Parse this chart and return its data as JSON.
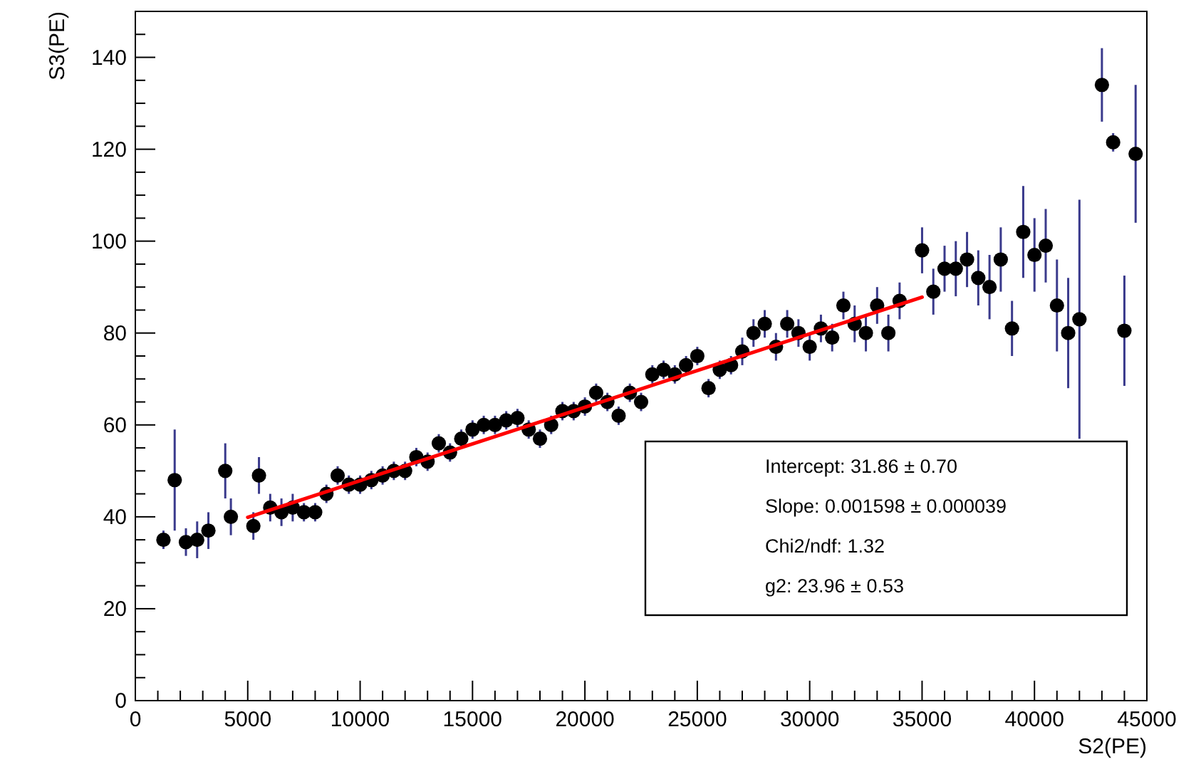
{
  "chart_data": {
    "type": "scatter",
    "xlabel": "S2(PE)",
    "ylabel": "S3(PE)",
    "xlim": [
      0,
      45000
    ],
    "ylim": [
      0,
      150
    ],
    "xticks": [
      0,
      5000,
      10000,
      15000,
      20000,
      25000,
      30000,
      35000,
      40000,
      45000
    ],
    "yticks": [
      0,
      20,
      40,
      60,
      80,
      100,
      120,
      140
    ],
    "grid": false,
    "series": [
      {
        "marker": "circle",
        "color": "#000000",
        "x": [
          1250,
          1750,
          2250,
          2750,
          3250,
          4000,
          4250,
          5250,
          5500,
          6000,
          6500,
          7000,
          7500,
          8000,
          8500,
          9000,
          9500,
          10000,
          10500,
          11000,
          11500,
          12000,
          12500,
          13000,
          13500,
          14000,
          14500,
          15000,
          15500,
          16000,
          16500,
          17000,
          17500,
          18000,
          18500,
          19000,
          19500,
          20000,
          20500,
          21000,
          21500,
          22000,
          22500,
          23000,
          23500,
          24000,
          24500,
          25000,
          25500,
          26000,
          26500,
          27000,
          27500,
          28000,
          28500,
          29000,
          29500,
          30000,
          30500,
          31000,
          31500,
          32000,
          32500,
          33000,
          33500,
          34000,
          35000,
          35500,
          36000,
          36500,
          37000,
          37500,
          38000,
          38500,
          39000,
          39500,
          40000,
          40500,
          41000,
          41500,
          42000,
          43000,
          43500,
          44000,
          44500
        ],
        "values": [
          35,
          48,
          34.5,
          35,
          37,
          50,
          40,
          38,
          49,
          42,
          41,
          42,
          41,
          41,
          45,
          49,
          47,
          47,
          48,
          49,
          50,
          50,
          53,
          52,
          56,
          54,
          57,
          59,
          60,
          60,
          61,
          61.5,
          59,
          57,
          60,
          63,
          63,
          64,
          67,
          65,
          62,
          67,
          65,
          71,
          72,
          71,
          73,
          75,
          68,
          72,
          73,
          76,
          80,
          82,
          77,
          82,
          80,
          77,
          81,
          79,
          86,
          82,
          80,
          86,
          80,
          87,
          98,
          89,
          94,
          94,
          96,
          92,
          90,
          96,
          81,
          102,
          97,
          99,
          86,
          80,
          83,
          134,
          121.5,
          80.5,
          119
        ],
        "errors": [
          2,
          11,
          3,
          4,
          4,
          6,
          4,
          3,
          4,
          3,
          3,
          3,
          2,
          2,
          2,
          2,
          2,
          2,
          2,
          2,
          2,
          2,
          2,
          2,
          2,
          2,
          2,
          2,
          2,
          2,
          2,
          2,
          2,
          2,
          2,
          2,
          2,
          2,
          2,
          2,
          2,
          2,
          2,
          2,
          2,
          2,
          2,
          2,
          2,
          2,
          2,
          3,
          3,
          3,
          3,
          3,
          3,
          3,
          3,
          3,
          3,
          4,
          4,
          4,
          4,
          4,
          5,
          5,
          5,
          6,
          6,
          6,
          7,
          7,
          6,
          10,
          8,
          8,
          10,
          12,
          26,
          8,
          2,
          12,
          15
        ]
      },
      {
        "type": "line",
        "marker": "none",
        "color": "#ff0000",
        "x": [
          5000,
          35000
        ],
        "values": [
          39.9,
          87.8
        ]
      }
    ],
    "annotations": [
      "Intercept: 31.86 ± 0.70",
      "Slope: 0.001598 ± 0.000039",
      "Chi2/ndf: 1.32",
      "g2: 23.96 ± 0.53"
    ]
  }
}
